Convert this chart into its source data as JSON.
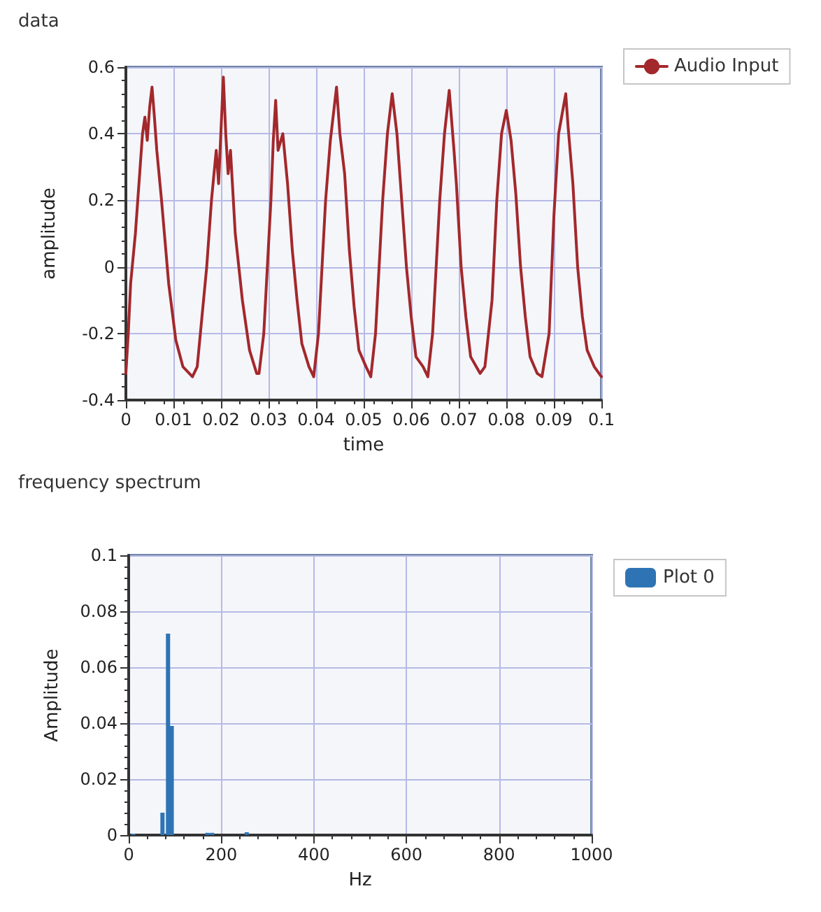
{
  "chart_data": [
    {
      "type": "line",
      "title": "data",
      "xlabel": "time",
      "ylabel": "amplitude",
      "xlim": [
        0,
        0.1
      ],
      "ylim": [
        -0.4,
        0.6
      ],
      "xticks": [
        0,
        0.01,
        0.02,
        0.03,
        0.04,
        0.05,
        0.06,
        0.07,
        0.08,
        0.09,
        0.1
      ],
      "yticks": [
        -0.4,
        -0.2,
        0,
        0.2,
        0.4,
        0.6
      ],
      "grid": true,
      "legend": "right",
      "marker": "none",
      "line_style": "solid",
      "x": [
        0,
        0.0005,
        0.001,
        0.002,
        0.003,
        0.0035,
        0.004,
        0.0045,
        0.005,
        0.0055,
        0.006,
        0.0065,
        0.0075,
        0.009,
        0.0105,
        0.012,
        0.014,
        0.015,
        0.016,
        0.017,
        0.018,
        0.019,
        0.0195,
        0.0205,
        0.021,
        0.0215,
        0.022,
        0.023,
        0.0245,
        0.026,
        0.0275,
        0.028,
        0.029,
        0.0305,
        0.031,
        0.0315,
        0.032,
        0.033,
        0.034,
        0.035,
        0.036,
        0.037,
        0.0385,
        0.0395,
        0.0405,
        0.042,
        0.043,
        0.0443,
        0.045,
        0.046,
        0.047,
        0.048,
        0.049,
        0.0505,
        0.0515,
        0.0525,
        0.054,
        0.055,
        0.056,
        0.057,
        0.058,
        0.059,
        0.06,
        0.061,
        0.0625,
        0.0635,
        0.0645,
        0.066,
        0.067,
        0.068,
        0.069,
        0.0695,
        0.0705,
        0.0715,
        0.0725,
        0.0745,
        0.0755,
        0.077,
        0.078,
        0.079,
        0.08,
        0.081,
        0.082,
        0.083,
        0.084,
        0.085,
        0.0865,
        0.0875,
        0.089,
        0.09,
        0.091,
        0.0925,
        0.093,
        0.094,
        0.095,
        0.096,
        0.097,
        0.0985,
        0.1
      ],
      "series": [
        {
          "name": "Audio Input",
          "color": "#a3282c",
          "values": [
            -0.32,
            -0.2,
            -0.05,
            0.1,
            0.3,
            0.4,
            0.45,
            0.38,
            0.48,
            0.54,
            0.45,
            0.35,
            0.2,
            -0.05,
            -0.22,
            -0.3,
            -0.33,
            -0.3,
            -0.15,
            0,
            0.2,
            0.35,
            0.25,
            0.57,
            0.4,
            0.28,
            0.35,
            0.1,
            -0.1,
            -0.25,
            -0.32,
            -0.32,
            -0.2,
            0.2,
            0.38,
            0.5,
            0.35,
            0.4,
            0.25,
            0.05,
            -0.1,
            -0.23,
            -0.3,
            -0.33,
            -0.2,
            0.2,
            0.38,
            0.54,
            0.4,
            0.28,
            0.05,
            -0.12,
            -0.25,
            -0.3,
            -0.33,
            -0.2,
            0.2,
            0.4,
            0.52,
            0.4,
            0.2,
            0,
            -0.15,
            -0.27,
            -0.3,
            -0.33,
            -0.2,
            0.2,
            0.4,
            0.53,
            0.35,
            0.25,
            0,
            -0.15,
            -0.27,
            -0.32,
            -0.3,
            -0.1,
            0.2,
            0.4,
            0.47,
            0.38,
            0.22,
            0,
            -0.15,
            -0.27,
            -0.32,
            -0.33,
            -0.2,
            0.15,
            0.4,
            0.52,
            0.42,
            0.25,
            0,
            -0.15,
            -0.25,
            -0.3,
            -0.33
          ]
        }
      ]
    },
    {
      "type": "bar",
      "title": "frequency spectrum",
      "xlabel": "Hz",
      "ylabel": "Amplitude",
      "xlim": [
        0,
        1000
      ],
      "ylim": [
        0,
        0.1
      ],
      "xticks": [
        0,
        200,
        400,
        600,
        800,
        1000
      ],
      "yticks": [
        0,
        0.02,
        0.04,
        0.06,
        0.08,
        0.1
      ],
      "grid": true,
      "legend": "right",
      "x": [
        10,
        73,
        85,
        93,
        170,
        180,
        255
      ],
      "series": [
        {
          "name": "Plot 0",
          "color": "#2e74b5",
          "values": [
            0.0005,
            0.008,
            0.072,
            0.039,
            0.0008,
            0.0008,
            0.001
          ]
        }
      ]
    }
  ]
}
